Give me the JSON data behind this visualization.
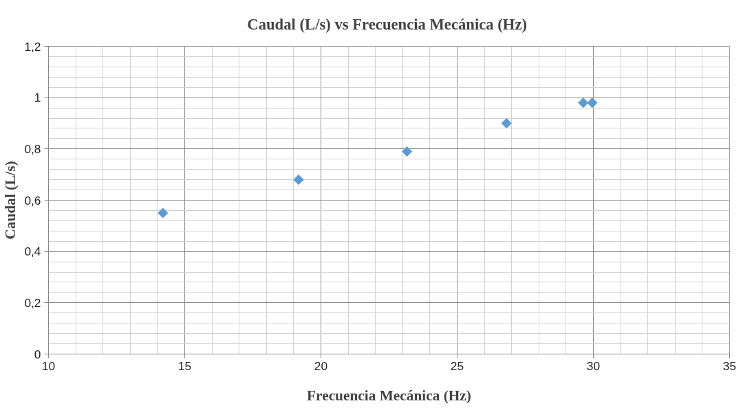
{
  "chart_data": {
    "type": "scatter",
    "title": "Caudal  (L/s) vs Frecuencia Mecánica (Hz)",
    "xlabel": "Frecuencia Mecánica (Hz)",
    "ylabel": "Caudal (L/s)",
    "x": [
      14.2,
      19.18,
      23.16,
      26.81,
      29.63,
      29.96
    ],
    "series": [
      {
        "color": "#5b9bd5",
        "values": [
          0.55,
          0.68,
          0.79,
          0.9,
          0.98,
          0.98
        ]
      }
    ],
    "xlim": [
      10,
      35
    ],
    "xticks": [
      10,
      15,
      20,
      25,
      30,
      35
    ],
    "ylim": [
      0,
      1.2
    ],
    "yticks": [
      {
        "value": 0,
        "label": "0"
      },
      {
        "value": 0.2,
        "label": "0,2"
      },
      {
        "value": 0.4,
        "label": "0,4"
      },
      {
        "value": 0.6,
        "label": "0,6"
      },
      {
        "value": 0.8,
        "label": "0,8"
      },
      {
        "value": 1,
        "label": "1"
      },
      {
        "value": 1.2,
        "label": "1,2"
      }
    ],
    "grid": true,
    "marker": "diamond"
  }
}
